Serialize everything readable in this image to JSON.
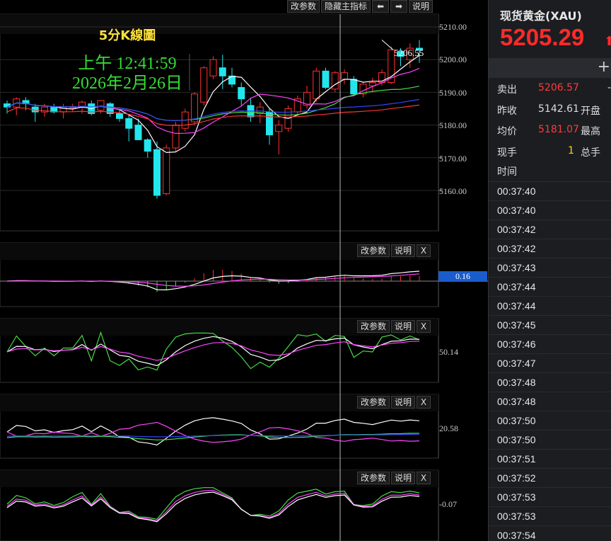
{
  "toolbar": {
    "param": "改参数",
    "hide": "隐藏主指标",
    "left": "⬅",
    "right": "➡",
    "help": "说明"
  },
  "sub_toolbar": {
    "param": "改参数",
    "help": "说明",
    "close": "X"
  },
  "chart_data": {
    "type": "candlestick",
    "title": "5分K線圖",
    "time": "上午  12:41:59",
    "date": "2026年2月26日",
    "current_price_label": "5206.55",
    "ylim": [
      5154,
      5213
    ],
    "y_ticks": [
      "5210.00",
      "5200.00",
      "5190.00",
      "5180.00",
      "5170.00",
      "5160.00"
    ],
    "y_tick_values": [
      5210,
      5200,
      5190,
      5180,
      5170,
      5160
    ],
    "candles": [
      [
        5186.5,
        5187.5,
        5183.5,
        5185.5
      ],
      [
        5185.5,
        5188.5,
        5183,
        5188
      ],
      [
        5187.5,
        5188.5,
        5184.5,
        5186.5
      ],
      [
        5185.5,
        5186.5,
        5181,
        5184
      ],
      [
        5184,
        5186.5,
        5182.5,
        5185.5
      ],
      [
        5185.5,
        5186.5,
        5183.5,
        5184
      ],
      [
        5184,
        5186.5,
        5182,
        5185.5
      ],
      [
        5185.5,
        5186.5,
        5184,
        5185.5
      ],
      [
        5185.5,
        5187.5,
        5183.5,
        5187
      ],
      [
        5186.5,
        5187.5,
        5183,
        5183.5
      ],
      [
        5184.5,
        5187.5,
        5183.5,
        5187.5
      ],
      [
        5186.5,
        5187,
        5182.5,
        5183.5
      ],
      [
        5183.5,
        5184.5,
        5181,
        5182
      ],
      [
        5182,
        5183,
        5175,
        5179
      ],
      [
        5180,
        5182,
        5176,
        5175.5
      ],
      [
        5175.5,
        5176,
        5170,
        5172
      ],
      [
        5172.5,
        5175,
        5157.5,
        5158.5
      ],
      [
        5159,
        5174,
        5158.5,
        5173
      ],
      [
        5173,
        5181,
        5172,
        5180
      ],
      [
        5179,
        5185,
        5178,
        5184
      ],
      [
        5181,
        5190,
        5180,
        5189.5
      ],
      [
        5187,
        5198,
        5186,
        5197.5
      ],
      [
        5195,
        5201,
        5194,
        5200
      ],
      [
        5197.5,
        5201.5,
        5191,
        5195
      ],
      [
        5195,
        5197.5,
        5191.5,
        5192.5
      ],
      [
        5191.5,
        5193,
        5186,
        5188
      ],
      [
        5186,
        5188,
        5181,
        5182.5
      ],
      [
        5183.5,
        5187,
        5180.5,
        5185.5
      ],
      [
        5184,
        5185,
        5174,
        5177
      ],
      [
        5178,
        5181.5,
        5171,
        5180
      ],
      [
        5179,
        5186,
        5178,
        5185
      ],
      [
        5184,
        5189,
        5183,
        5188
      ],
      [
        5186,
        5192,
        5185,
        5190
      ],
      [
        5188,
        5197.5,
        5187,
        5196.5
      ],
      [
        5196.5,
        5197.5,
        5191,
        5191.5
      ],
      [
        5191,
        5196.5,
        5190,
        5196
      ],
      [
        5194,
        5197,
        5192.5,
        5196
      ],
      [
        5194,
        5195,
        5189,
        5189.5
      ],
      [
        5189.5,
        5193,
        5188.5,
        5192.5
      ],
      [
        5192,
        5194.5,
        5190,
        5193
      ],
      [
        5193,
        5197,
        5192,
        5196
      ],
      [
        5193,
        5204,
        5192.5,
        5203
      ],
      [
        5202.5,
        5203.5,
        5198,
        5201
      ],
      [
        5200,
        5205,
        5197.5,
        5203.5
      ],
      [
        5203.5,
        5206,
        5199,
        5203
      ]
    ],
    "macd_label": "0.16",
    "ind2_label": "50.14",
    "ind3_label": "20.58",
    "ind4_label": "-0.07"
  },
  "quote": {
    "name": "现货黄金(XAU)",
    "price": "5205.29",
    "arrow": "⬆",
    "plus": "+",
    "sell_label": "卖出",
    "sell_value": "5206.57",
    "sell_tail": "-",
    "prev_label": "昨收",
    "prev_value": "5142.61",
    "open_label": "开盘",
    "avg_label": "均价",
    "avg_value": "5181.07",
    "high_label": "最高",
    "hand_label": "现手",
    "hand_value": "1",
    "total_label": "总手",
    "time_header": "时间",
    "times": [
      "00:37:40",
      "00:37:40",
      "00:37:42",
      "00:37:42",
      "00:37:43",
      "00:37:44",
      "00:37:44",
      "00:37:45",
      "00:37:46",
      "00:37:47",
      "00:37:48",
      "00:37:48",
      "00:37:50",
      "00:37:50",
      "00:37:51",
      "00:37:52",
      "00:37:53",
      "00:37:53",
      "00:37:54"
    ]
  },
  "colors": {
    "up": "#ff3030",
    "down": "#22e6ee",
    "ma1": "#ffffff",
    "ma2": "#ff44ff",
    "ma3": "#44dd44",
    "ma4": "#3344ff",
    "ma5": "#ff3333"
  }
}
